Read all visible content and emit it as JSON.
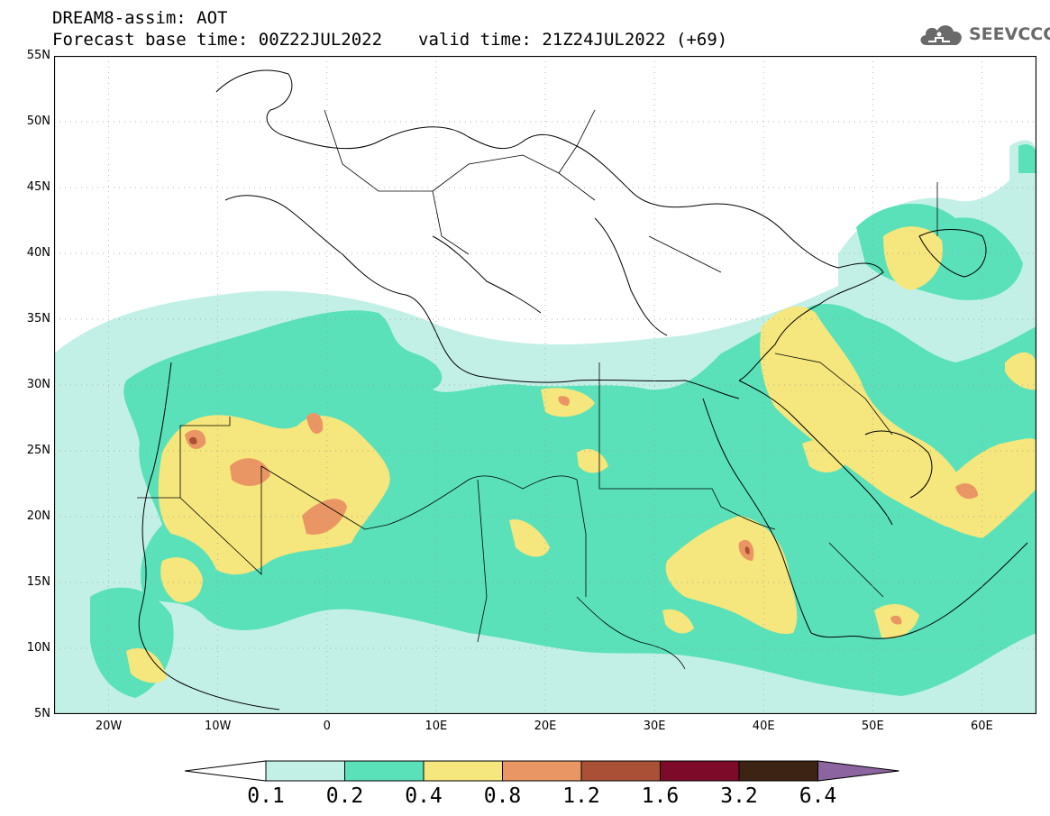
{
  "header": {
    "line1": "DREAM8-assim: AOT",
    "base_time": "Forecast base time: 00Z22JUL2022",
    "valid_time": "valid time: 21Z24JUL2022 (+69)"
  },
  "logo": {
    "text": "SEEVCCC",
    "icon": "cloud-icon",
    "color": "#6a6a6a"
  },
  "map": {
    "projection": "lat-lon",
    "lon_range": [
      -25,
      65
    ],
    "lat_range": [
      5,
      55
    ],
    "gridlines": "dotted",
    "lat_labels": [
      "5N",
      "10N",
      "15N",
      "20N",
      "25N",
      "30N",
      "35N",
      "40N",
      "45N",
      "50N",
      "55N"
    ],
    "lon_labels": [
      "20W",
      "10W",
      "0",
      "10E",
      "20E",
      "30E",
      "40E",
      "50E",
      "60E"
    ],
    "field": "AOT"
  },
  "colorbar": {
    "labels": [
      "0.1",
      "0.2",
      "0.4",
      "0.8",
      "1.2",
      "1.6",
      "3.2",
      "6.4"
    ],
    "colors": [
      "#ffffff",
      "#c3f0e6",
      "#5ae1b9",
      "#f5e67d",
      "#ea9664",
      "#aa5037",
      "#7d0a28",
      "#3c2314",
      "#8c64a0"
    ]
  }
}
